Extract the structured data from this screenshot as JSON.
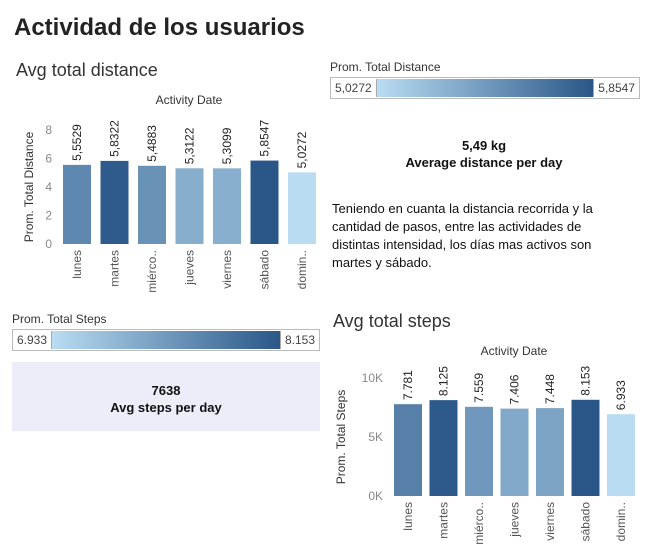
{
  "dashboard_title": "Actividad de los usuarios",
  "distance_section": {
    "title": "Avg total distance",
    "legend": {
      "label": "Prom. Total Distance",
      "min": "5,0272",
      "max": "5,8547"
    }
  },
  "distance_kpi": {
    "value": "5,49 kg",
    "label": "Average distance per day"
  },
  "note": "Teniendo en cuanta la distancia recorrida y la cantidad de pasos, entre las actividades de distintas intensidad, los días mas activos son martes y sábado.",
  "steps_legend": {
    "label": "Prom. Total Steps",
    "min": "6.933",
    "max": "8.153"
  },
  "steps_kpi": {
    "value": "7638",
    "label": "Avg steps per day"
  },
  "steps_section": {
    "title": "Avg total steps"
  },
  "colors": {
    "low": "#b9dcf2",
    "high": "#2a5788"
  },
  "chart_data": [
    {
      "type": "bar",
      "title": "Avg total distance",
      "xlabel": "Activity Date",
      "ylabel": "Prom. Total Distance",
      "categories": [
        "lunes",
        "martes",
        "miérco..",
        "jueves",
        "viernes",
        "sábado",
        "domin.."
      ],
      "values": [
        5.5529,
        5.8322,
        5.4883,
        5.3122,
        5.3099,
        5.8547,
        5.0272
      ],
      "value_labels": [
        "5,5529",
        "5,8322",
        "5,4883",
        "5,3122",
        "5,3099",
        "5,8547",
        "5,0272"
      ],
      "ylim": [
        0,
        8
      ],
      "yticks": [
        0,
        2,
        4,
        6,
        8
      ],
      "ytick_labels": [
        "0",
        "2",
        "4",
        "6",
        "8"
      ],
      "grid": false
    },
    {
      "type": "bar",
      "title": "Avg total steps",
      "xlabel": "Activity Date",
      "ylabel": "Prom. Total Steps",
      "categories": [
        "lunes",
        "martes",
        "miérco..",
        "jueves",
        "viernes",
        "sábado",
        "domin.."
      ],
      "values": [
        7781,
        8125,
        7559,
        7406,
        7448,
        8153,
        6933
      ],
      "value_labels": [
        "7.781",
        "8.125",
        "7.559",
        "7.406",
        "7.448",
        "8.153",
        "6.933"
      ],
      "ylim": [
        0,
        10000
      ],
      "yticks": [
        0,
        5000,
        10000
      ],
      "ytick_labels": [
        "0K",
        "5K",
        "10K"
      ],
      "grid": false
    }
  ]
}
